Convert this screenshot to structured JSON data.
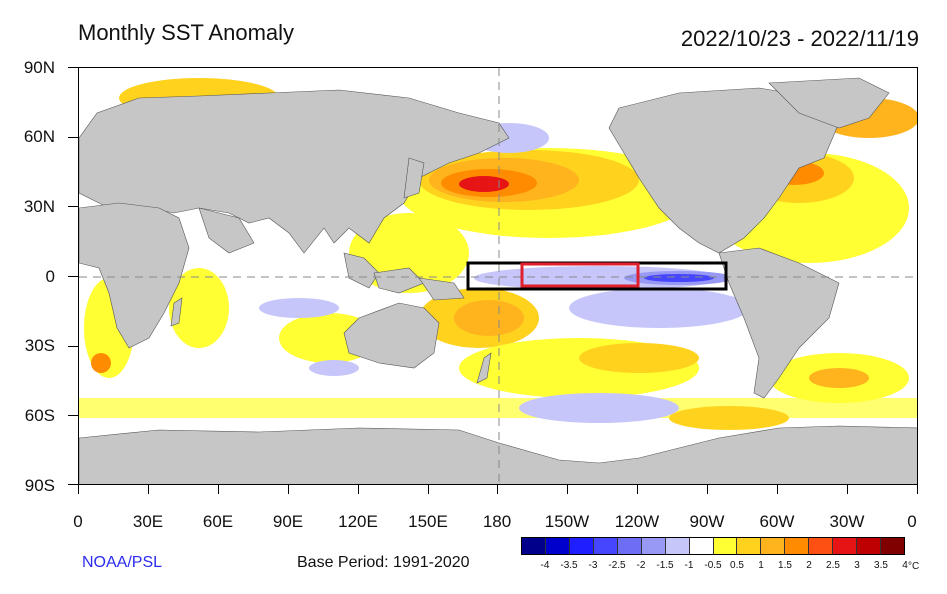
{
  "title": "Monthly SST Anomaly",
  "date_range": "2022/10/23 - 2022/11/19",
  "y_labels": [
    "90N",
    "60N",
    "30N",
    "0",
    "30S",
    "60S",
    "90S"
  ],
  "x_labels": [
    "0",
    "30E",
    "60E",
    "90E",
    "120E",
    "150E",
    "180",
    "150W",
    "120W",
    "90W",
    "60W",
    "30W",
    "0"
  ],
  "credit": "NOAA/PSL",
  "base_period": "Base Period: 1991-2020",
  "legend": {
    "colors": [
      "#00008b",
      "#0000cd",
      "#1e1eff",
      "#4646ff",
      "#6e6ef5",
      "#9898f5",
      "#c6c6fa",
      "#ffffff",
      "#ffff33",
      "#ffd21e",
      "#ffb41e",
      "#ff8c00",
      "#ff5014",
      "#e61414",
      "#be0000",
      "#800000"
    ],
    "labels": [
      "-4",
      "-3.5",
      "-3",
      "-2.5",
      "-2",
      "-1.5",
      "-1",
      "-0.5",
      "0.5",
      "1",
      "1.5",
      "2",
      "2.5",
      "3",
      "3.5",
      "4"
    ],
    "unit": "°C"
  },
  "regions": {
    "nino34_box_color": "#000000",
    "nino4_box_color": "#e0202c"
  }
}
